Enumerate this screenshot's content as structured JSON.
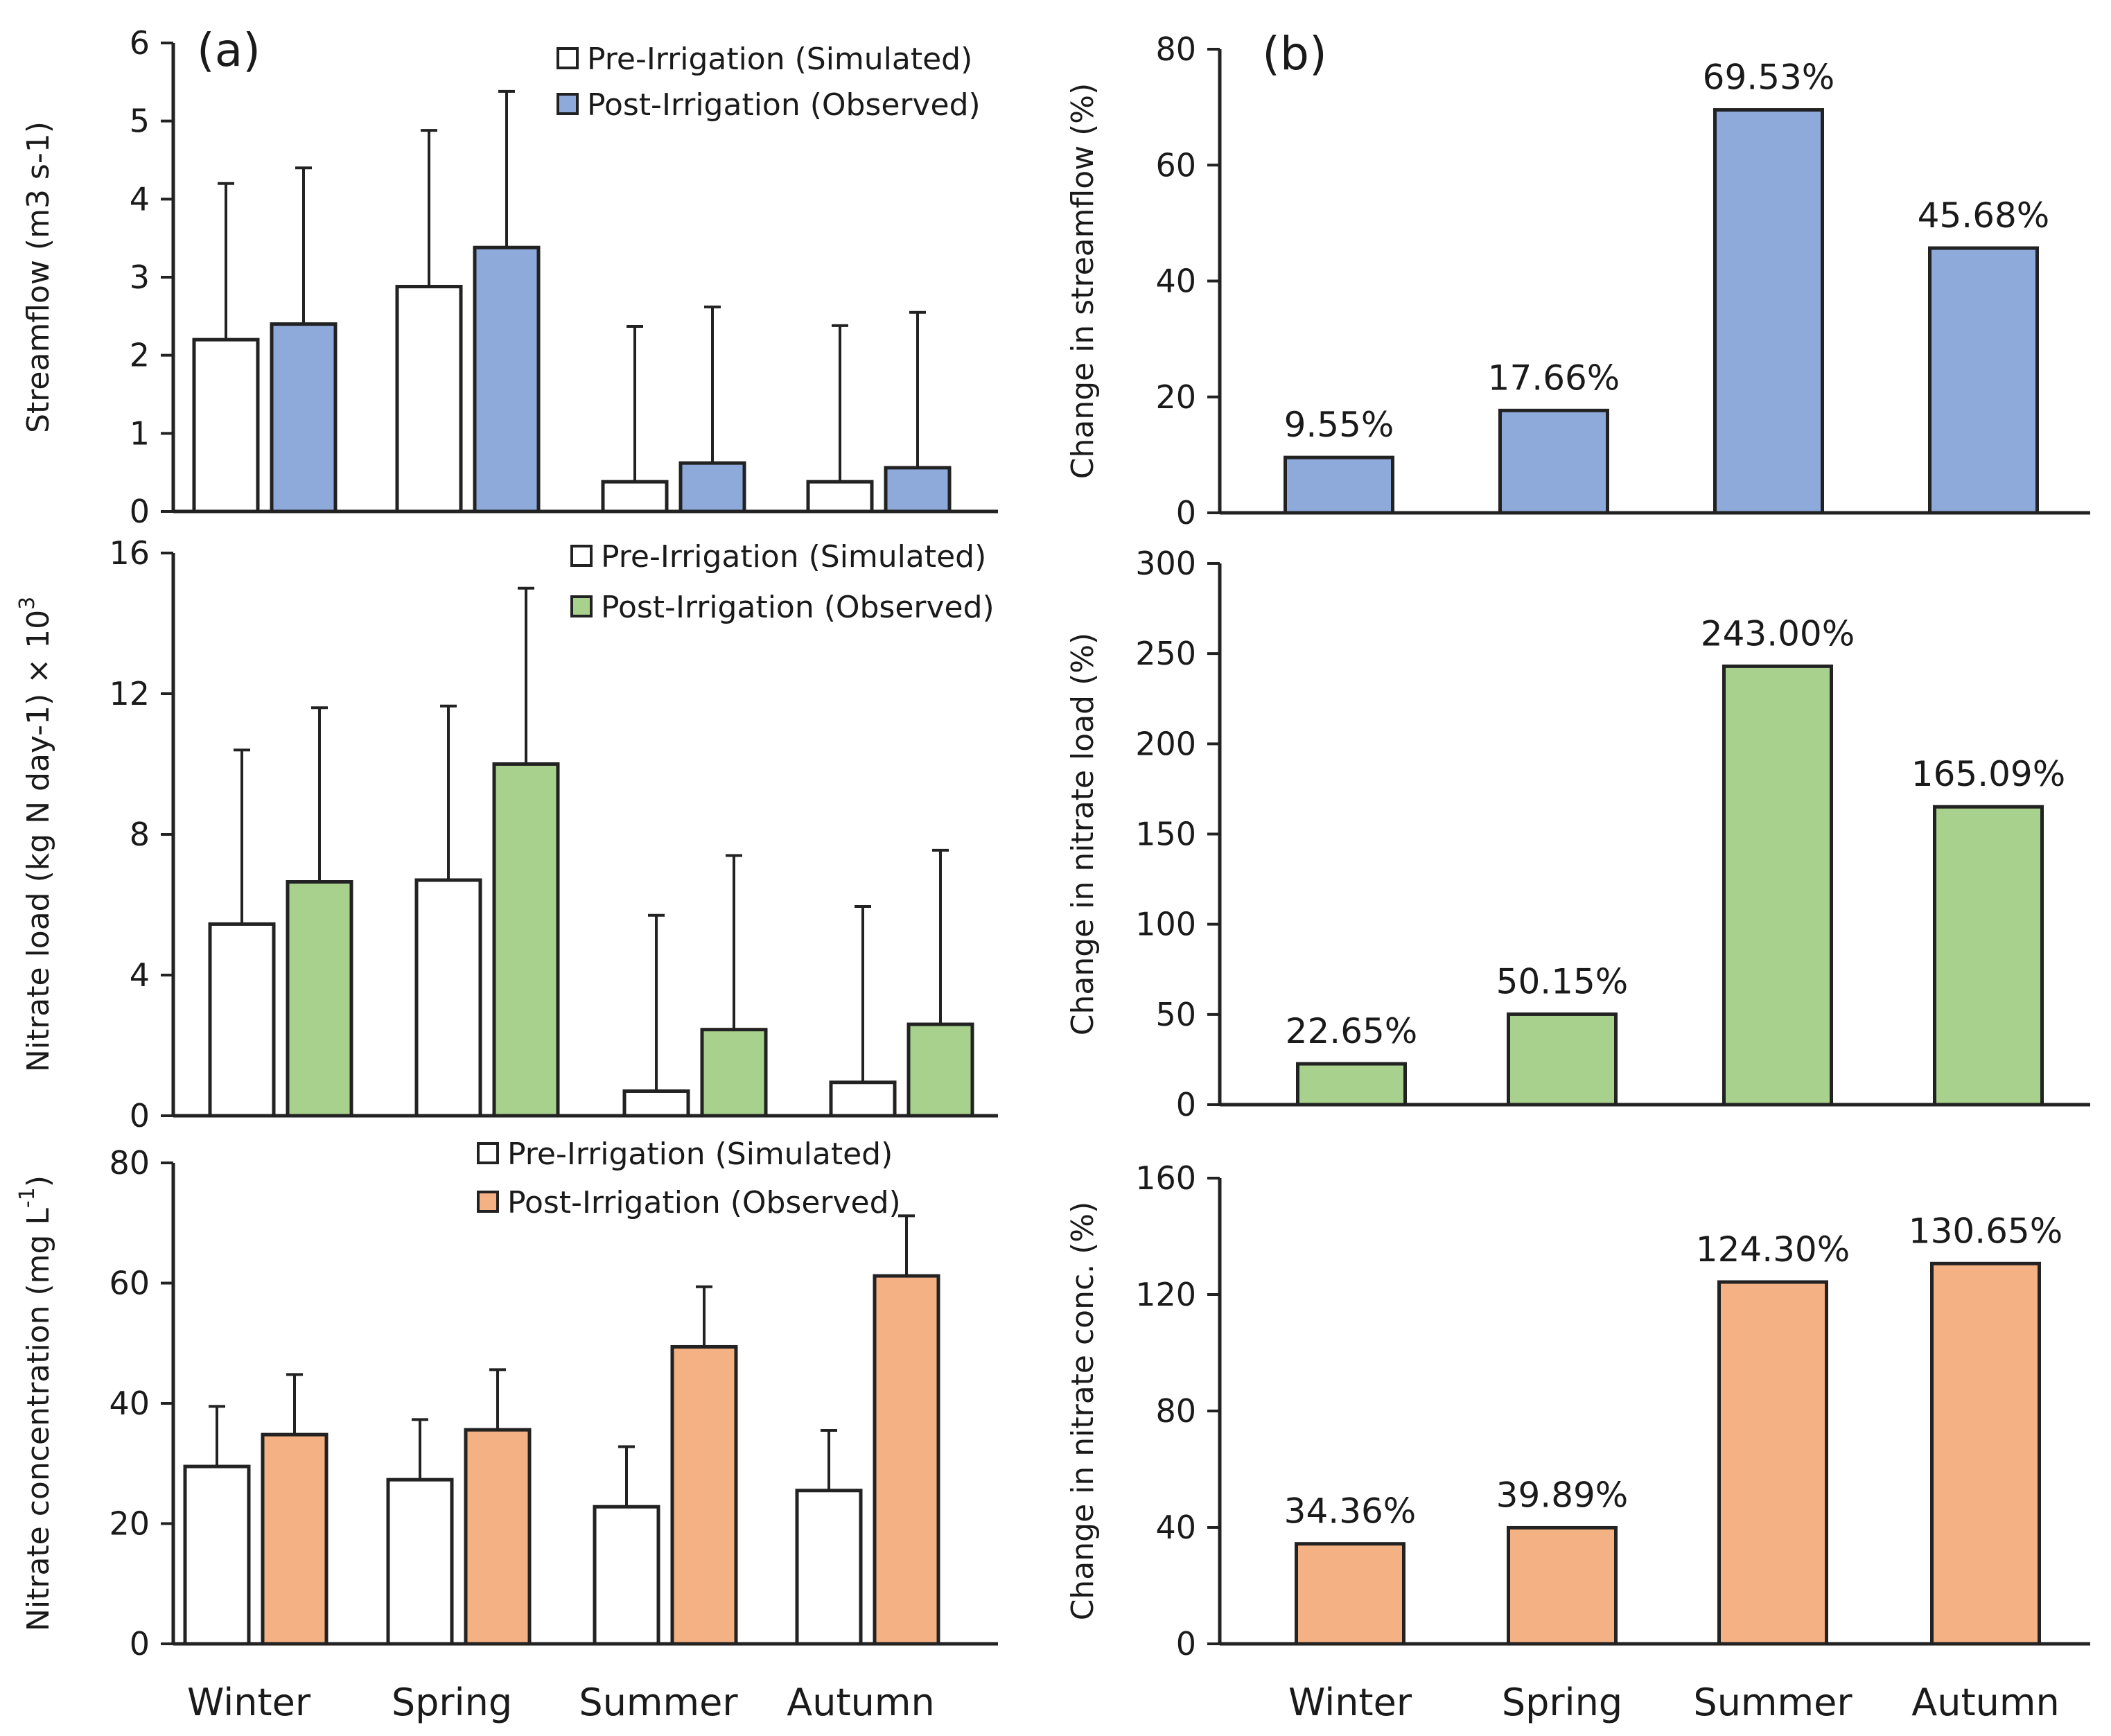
{
  "chart_data": [
    {
      "id": "a1",
      "type": "bar",
      "panel_label": "(a)",
      "categories": [
        "Winter",
        "Spring",
        "Summer",
        "Autumn"
      ],
      "ylabel": "Streamflow (m3 s-1)",
      "ylim": [
        0,
        6
      ],
      "yticks": [
        0,
        1,
        2,
        3,
        4,
        5,
        6
      ],
      "legend_position": "top-right",
      "series": [
        {
          "name": "Pre-Irrigation (Simulated)",
          "color": "#ffffff",
          "values": [
            2.2,
            2.88,
            0.38,
            0.38
          ],
          "error_upper": [
            4.2,
            4.88,
            2.37,
            2.38
          ]
        },
        {
          "name": "Post-Irrigation (Observed)",
          "color": "#8eaadb",
          "values": [
            2.4,
            3.38,
            0.62,
            0.56
          ],
          "error_upper": [
            4.4,
            5.38,
            2.62,
            2.55
          ]
        }
      ]
    },
    {
      "id": "a2",
      "type": "bar",
      "categories": [
        "Winter",
        "Spring",
        "Summer",
        "Autumn"
      ],
      "ylabel_main": "Nitrate load (kg N day-1) × 10",
      "ylabel_sup": "3",
      "ylim": [
        0,
        16
      ],
      "yticks": [
        0,
        4,
        8,
        12,
        16
      ],
      "legend_position": "top-right",
      "series": [
        {
          "name": "Pre-Irrigation (Simulated)",
          "color": "#ffffff",
          "values": [
            5.45,
            6.7,
            0.7,
            0.95
          ],
          "error_upper": [
            10.4,
            11.65,
            5.7,
            5.95
          ]
        },
        {
          "name": "Post-Irrigation (Observed)",
          "color": "#a9d18e",
          "values": [
            6.65,
            10.0,
            2.45,
            2.6
          ],
          "error_upper": [
            11.6,
            15.0,
            7.4,
            7.55
          ]
        }
      ]
    },
    {
      "id": "a3",
      "type": "bar",
      "categories": [
        "Winter",
        "Spring",
        "Summer",
        "Autumn"
      ],
      "ylabel_main": "Nitrate concentration (mg L",
      "ylabel_sup": "-1",
      "ylabel_tail": ")",
      "ylim": [
        0,
        80
      ],
      "yticks": [
        0,
        20,
        40,
        60,
        80
      ],
      "legend_position": "top-right",
      "series": [
        {
          "name": "Pre-Irrigation (Simulated)",
          "color": "#ffffff",
          "values": [
            29.5,
            27.3,
            22.8,
            25.5
          ],
          "error_upper": [
            39.5,
            37.3,
            32.8,
            35.5
          ]
        },
        {
          "name": "Post-Irrigation (Observed)",
          "color": "#f4b183",
          "values": [
            34.8,
            35.6,
            49.4,
            61.2
          ],
          "error_upper": [
            44.8,
            45.6,
            59.4,
            71.2
          ]
        }
      ]
    },
    {
      "id": "b1",
      "type": "bar",
      "panel_label": "(b)",
      "categories": [
        "Winter",
        "Spring",
        "Summer",
        "Autumn"
      ],
      "ylabel": "Change in streamflow (%)",
      "ylim": [
        0,
        80
      ],
      "yticks": [
        0,
        20,
        40,
        60,
        80
      ],
      "color": "#8eaadb",
      "values": [
        9.55,
        17.66,
        69.53,
        45.68
      ],
      "data_labels": [
        "9.55%",
        "17.66%",
        "69.53%",
        "45.68%"
      ]
    },
    {
      "id": "b2",
      "type": "bar",
      "categories": [
        "Winter",
        "Spring",
        "Summer",
        "Autumn"
      ],
      "ylabel": "Change in nitrate load (%)",
      "ylim": [
        0,
        300
      ],
      "yticks": [
        0,
        50,
        100,
        150,
        200,
        250,
        300
      ],
      "color": "#a9d18e",
      "values": [
        22.65,
        50.15,
        243.0,
        165.09
      ],
      "data_labels": [
        "22.65%",
        "50.15%",
        "243.00%",
        "165.09%"
      ]
    },
    {
      "id": "b3",
      "type": "bar",
      "categories": [
        "Winter",
        "Spring",
        "Summer",
        "Autumn"
      ],
      "ylabel": "Change in nitrate conc. (%)",
      "ylim": [
        0,
        160
      ],
      "yticks": [
        0,
        40,
        80,
        120,
        160
      ],
      "color": "#f4b183",
      "values": [
        34.36,
        39.89,
        124.3,
        130.65
      ],
      "data_labels": [
        "34.36%",
        "39.89%",
        "124.30%",
        "130.65%"
      ]
    }
  ]
}
